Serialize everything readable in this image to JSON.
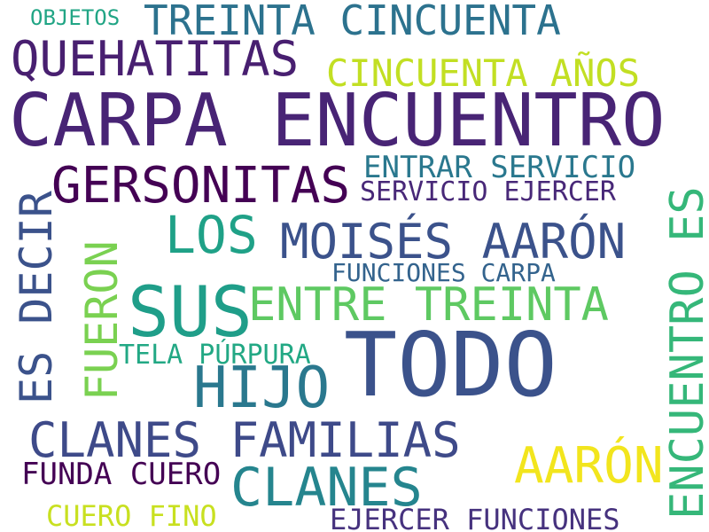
{
  "words": [
    {
      "text": "OBJETOS",
      "color": "#21a585"
    },
    {
      "text": "TREINTA CINCUENTA",
      "color": "#2c728e"
    },
    {
      "text": "QUEHATITAS",
      "color": "#481f70"
    },
    {
      "text": "CINCUENTA AÑOS",
      "color": "#c2df23"
    },
    {
      "text": "CARPA ENCUENTRO",
      "color": "#482475"
    },
    {
      "text": "GERSONITAS",
      "color": "#440154"
    },
    {
      "text": "ENTRAR SERVICIO",
      "color": "#2a788e"
    },
    {
      "text": "SERVICIO EJERCER",
      "color": "#482878"
    },
    {
      "text": "LOS",
      "color": "#1fa187"
    },
    {
      "text": "MOISÉS AARÓN",
      "color": "#3b528b"
    },
    {
      "text": "FUNCIONES CARPA",
      "color": "#33638d"
    },
    {
      "text": "SUS",
      "color": "#1f9e89"
    },
    {
      "text": "ENTRE TREINTA",
      "color": "#5ec962"
    },
    {
      "text": "TODO",
      "color": "#3b528b"
    },
    {
      "text": "TELA PÚRPURA",
      "color": "#22a884"
    },
    {
      "text": "HIJO",
      "color": "#2a788e"
    },
    {
      "text": "CLANES FAMILIAS",
      "color": "#3e4a89"
    },
    {
      "text": "FUNDA CUERO",
      "color": "#440154"
    },
    {
      "text": "AARÓN",
      "color": "#f2e51d"
    },
    {
      "text": "CLANES",
      "color": "#25858e"
    },
    {
      "text": "CUERO FINO",
      "color": "#c8e020"
    },
    {
      "text": "EJERCER FUNCIONES",
      "color": "#46327e"
    },
    {
      "text": "ES DECIR",
      "color": "#3b528b"
    },
    {
      "text": "FUERON",
      "color": "#7ad151"
    },
    {
      "text": "ENCUENTRO ES",
      "color": "#35b779"
    }
  ]
}
